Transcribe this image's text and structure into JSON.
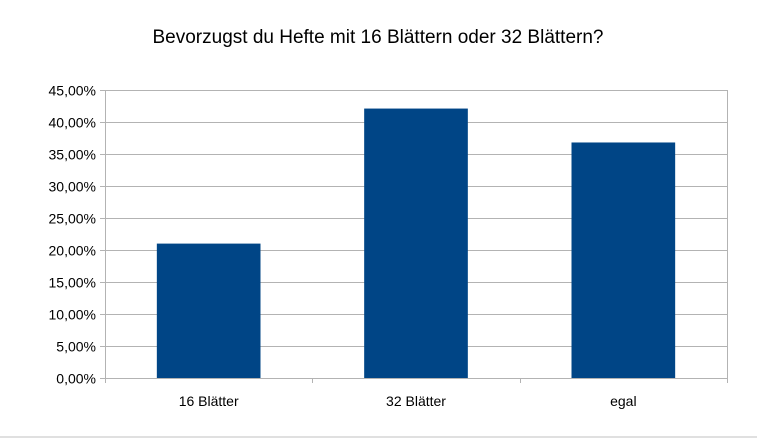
{
  "chart_data": {
    "type": "bar",
    "title": "Bevorzugst du Hefte mit 16 Blättern oder 32 Blättern?",
    "categories": [
      "16 Blätter",
      "32 Blätter",
      "egal"
    ],
    "values": [
      21.0,
      42.1,
      36.8
    ],
    "ylim": [
      0,
      45
    ],
    "yticks": [
      0,
      5,
      10,
      15,
      20,
      25,
      30,
      35,
      40,
      45
    ],
    "ytick_labels": [
      "0,00%",
      "5,00%",
      "10,00%",
      "15,00%",
      "20,00%",
      "25,00%",
      "30,00%",
      "35,00%",
      "40,00%",
      "45,00%"
    ],
    "grid": true,
    "legend": "none",
    "bar_color": "#004586",
    "grid_color": "#b3b3b3"
  }
}
